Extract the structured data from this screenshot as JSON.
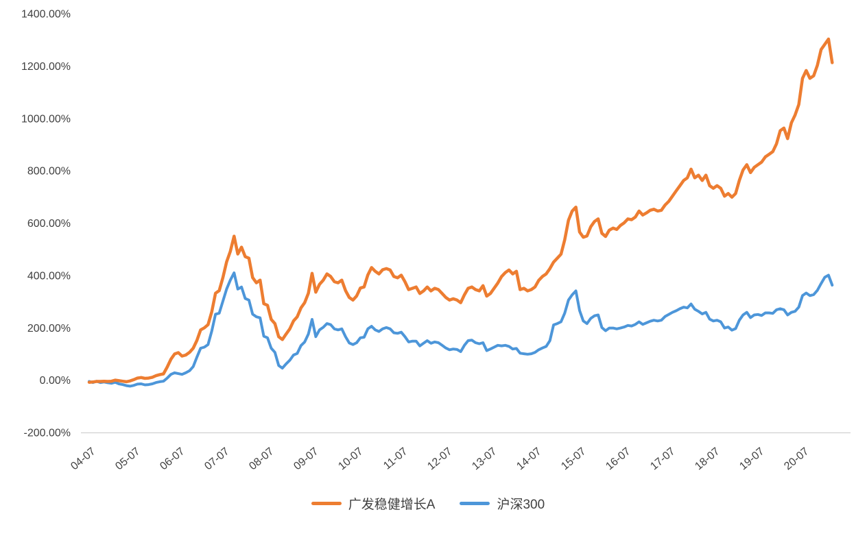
{
  "colors": {
    "background": "#FFFFFF",
    "axis_text": "#404040",
    "axis_line": "#C9C9C9",
    "fund_line": "#ED7D31",
    "index_line": "#4D96D9"
  },
  "chart_data": {
    "type": "line",
    "title": "",
    "xlabel": "",
    "ylabel": "",
    "grid": false,
    "legend_position": "bottom",
    "y_axis": {
      "min": -200,
      "max": 1400,
      "tick_step": 200,
      "tick_values": [
        1400,
        1200,
        1000,
        800,
        600,
        400,
        200,
        0,
        -200
      ],
      "tick_labels": [
        "1400.00%",
        "1200.00%",
        "1000.00%",
        "800.00%",
        "600.00%",
        "400.00%",
        "200.00%",
        "0.00%",
        "-200.00%"
      ]
    },
    "x_axis": {
      "tick_labels": [
        "04-07",
        "05-07",
        "06-07",
        "07-07",
        "08-07",
        "09-07",
        "10-07",
        "11-07",
        "12-07",
        "13-07",
        "14-07",
        "15-07",
        "16-07",
        "17-07",
        "18-07",
        "19-07",
        "20-07"
      ],
      "tick_months": [
        "2004-07",
        "2005-07",
        "2006-07",
        "2007-07",
        "2008-07",
        "2009-07",
        "2010-07",
        "2011-07",
        "2012-07",
        "2013-07",
        "2014-07",
        "2015-07",
        "2016-07",
        "2017-07",
        "2018-07",
        "2019-07",
        "2020-07"
      ]
    },
    "series": [
      {
        "name": "广发稳健增长A",
        "color": "#ED7D31",
        "stroke_width": 4.5
      },
      {
        "name": "沪深300",
        "color": "#4D96D9",
        "stroke_width": 4
      }
    ],
    "points_format": [
      "month",
      "广发稳健增长A cumulative return %",
      "沪深300 cumulative return %"
    ],
    "points": [
      [
        "2004-07",
        -8,
        -5
      ],
      [
        "2004-08",
        -7,
        -9
      ],
      [
        "2004-09",
        -5,
        -4
      ],
      [
        "2004-10",
        -5,
        -9
      ],
      [
        "2004-11",
        -4,
        -7
      ],
      [
        "2004-12",
        -5,
        -10
      ],
      [
        "2005-01",
        -4,
        -12
      ],
      [
        "2005-02",
        0,
        -8
      ],
      [
        "2005-03",
        -2,
        -14
      ],
      [
        "2005-04",
        -4,
        -17
      ],
      [
        "2005-05",
        -6,
        -21
      ],
      [
        "2005-06",
        -3,
        -23
      ],
      [
        "2005-07",
        2,
        -20
      ],
      [
        "2005-08",
        8,
        -15
      ],
      [
        "2005-09",
        10,
        -14
      ],
      [
        "2005-10",
        7,
        -18
      ],
      [
        "2005-11",
        8,
        -17
      ],
      [
        "2005-12",
        11,
        -14
      ],
      [
        "2006-01",
        17,
        -9
      ],
      [
        "2006-02",
        21,
        -6
      ],
      [
        "2006-03",
        24,
        -4
      ],
      [
        "2006-04",
        50,
        8
      ],
      [
        "2006-05",
        80,
        22
      ],
      [
        "2006-06",
        100,
        28
      ],
      [
        "2006-07",
        105,
        25
      ],
      [
        "2006-08",
        92,
        22
      ],
      [
        "2006-09",
        96,
        28
      ],
      [
        "2006-10",
        106,
        36
      ],
      [
        "2006-11",
        122,
        52
      ],
      [
        "2006-12",
        152,
        88
      ],
      [
        "2007-01",
        192,
        122
      ],
      [
        "2007-02",
        200,
        126
      ],
      [
        "2007-03",
        212,
        136
      ],
      [
        "2007-04",
        262,
        188
      ],
      [
        "2007-05",
        332,
        252
      ],
      [
        "2007-06",
        342,
        256
      ],
      [
        "2007-07",
        392,
        302
      ],
      [
        "2007-08",
        452,
        348
      ],
      [
        "2007-09",
        492,
        382
      ],
      [
        "2007-10",
        550,
        410
      ],
      [
        "2007-11",
        482,
        348
      ],
      [
        "2007-12",
        508,
        356
      ],
      [
        "2008-01",
        472,
        312
      ],
      [
        "2008-02",
        466,
        306
      ],
      [
        "2008-03",
        392,
        252
      ],
      [
        "2008-04",
        372,
        242
      ],
      [
        "2008-05",
        382,
        238
      ],
      [
        "2008-06",
        292,
        168
      ],
      [
        "2008-07",
        286,
        162
      ],
      [
        "2008-08",
        232,
        122
      ],
      [
        "2008-09",
        216,
        106
      ],
      [
        "2008-10",
        166,
        56
      ],
      [
        "2008-11",
        155,
        46
      ],
      [
        "2008-12",
        176,
        62
      ],
      [
        "2009-01",
        196,
        76
      ],
      [
        "2009-02",
        226,
        96
      ],
      [
        "2009-03",
        242,
        102
      ],
      [
        "2009-04",
        276,
        132
      ],
      [
        "2009-05",
        296,
        146
      ],
      [
        "2009-06",
        332,
        176
      ],
      [
        "2009-07",
        408,
        232
      ],
      [
        "2009-08",
        336,
        166
      ],
      [
        "2009-09",
        366,
        192
      ],
      [
        "2009-10",
        382,
        202
      ],
      [
        "2009-11",
        406,
        216
      ],
      [
        "2009-12",
        396,
        212
      ],
      [
        "2010-01",
        376,
        196
      ],
      [
        "2010-02",
        372,
        192
      ],
      [
        "2010-03",
        382,
        196
      ],
      [
        "2010-04",
        342,
        166
      ],
      [
        "2010-05",
        316,
        142
      ],
      [
        "2010-06",
        306,
        136
      ],
      [
        "2010-07",
        322,
        143
      ],
      [
        "2010-08",
        352,
        162
      ],
      [
        "2010-09",
        356,
        164
      ],
      [
        "2010-10",
        402,
        196
      ],
      [
        "2010-11",
        430,
        206
      ],
      [
        "2010-12",
        416,
        192
      ],
      [
        "2011-01",
        406,
        186
      ],
      [
        "2011-02",
        422,
        196
      ],
      [
        "2011-03",
        426,
        201
      ],
      [
        "2011-04",
        421,
        196
      ],
      [
        "2011-05",
        396,
        181
      ],
      [
        "2011-06",
        391,
        179
      ],
      [
        "2011-07",
        401,
        183
      ],
      [
        "2011-08",
        376,
        166
      ],
      [
        "2011-09",
        346,
        146
      ],
      [
        "2011-10",
        351,
        149
      ],
      [
        "2011-11",
        356,
        149
      ],
      [
        "2011-12",
        331,
        131
      ],
      [
        "2012-01",
        341,
        141
      ],
      [
        "2012-02",
        356,
        151
      ],
      [
        "2012-03",
        341,
        141
      ],
      [
        "2012-04",
        351,
        146
      ],
      [
        "2012-05",
        346,
        143
      ],
      [
        "2012-06",
        331,
        133
      ],
      [
        "2012-07",
        316,
        123
      ],
      [
        "2012-08",
        306,
        116
      ],
      [
        "2012-09",
        311,
        119
      ],
      [
        "2012-10",
        306,
        117
      ],
      [
        "2012-11",
        296,
        109
      ],
      [
        "2012-12",
        326,
        133
      ],
      [
        "2013-01",
        351,
        151
      ],
      [
        "2013-02",
        356,
        153
      ],
      [
        "2013-03",
        346,
        143
      ],
      [
        "2013-04",
        341,
        139
      ],
      [
        "2013-05",
        361,
        143
      ],
      [
        "2013-06",
        321,
        113
      ],
      [
        "2013-07",
        331,
        119
      ],
      [
        "2013-08",
        351,
        126
      ],
      [
        "2013-09",
        371,
        133
      ],
      [
        "2013-10",
        396,
        131
      ],
      [
        "2013-11",
        411,
        133
      ],
      [
        "2013-12",
        421,
        129
      ],
      [
        "2014-01",
        406,
        119
      ],
      [
        "2014-02",
        416,
        121
      ],
      [
        "2014-03",
        346,
        103
      ],
      [
        "2014-04",
        351,
        101
      ],
      [
        "2014-05",
        341,
        99
      ],
      [
        "2014-06",
        346,
        101
      ],
      [
        "2014-07",
        356,
        106
      ],
      [
        "2014-08",
        381,
        116
      ],
      [
        "2014-09",
        396,
        123
      ],
      [
        "2014-10",
        406,
        129
      ],
      [
        "2014-11",
        426,
        151
      ],
      [
        "2014-12",
        451,
        211
      ],
      [
        "2015-01",
        466,
        216
      ],
      [
        "2015-02",
        481,
        223
      ],
      [
        "2015-03",
        536,
        256
      ],
      [
        "2015-04",
        611,
        306
      ],
      [
        "2015-05",
        646,
        326
      ],
      [
        "2015-06",
        661,
        341
      ],
      [
        "2015-07",
        566,
        266
      ],
      [
        "2015-08",
        546,
        226
      ],
      [
        "2015-09",
        551,
        216
      ],
      [
        "2015-10",
        586,
        236
      ],
      [
        "2015-11",
        606,
        246
      ],
      [
        "2015-12",
        616,
        249
      ],
      [
        "2016-01",
        561,
        201
      ],
      [
        "2016-02",
        549,
        189
      ],
      [
        "2016-03",
        573,
        199
      ],
      [
        "2016-04",
        581,
        199
      ],
      [
        "2016-05",
        576,
        196
      ],
      [
        "2016-06",
        591,
        199
      ],
      [
        "2016-07",
        601,
        203
      ],
      [
        "2016-08",
        616,
        209
      ],
      [
        "2016-09",
        613,
        207
      ],
      [
        "2016-10",
        623,
        213
      ],
      [
        "2016-11",
        646,
        223
      ],
      [
        "2016-12",
        631,
        213
      ],
      [
        "2017-01",
        639,
        219
      ],
      [
        "2017-02",
        649,
        225
      ],
      [
        "2017-03",
        653,
        229
      ],
      [
        "2017-04",
        646,
        226
      ],
      [
        "2017-05",
        649,
        229
      ],
      [
        "2017-06",
        669,
        243
      ],
      [
        "2017-07",
        683,
        251
      ],
      [
        "2017-08",
        703,
        259
      ],
      [
        "2017-09",
        723,
        265
      ],
      [
        "2017-10",
        743,
        273
      ],
      [
        "2017-11",
        763,
        279
      ],
      [
        "2017-12",
        773,
        276
      ],
      [
        "2018-01",
        806,
        291
      ],
      [
        "2018-02",
        773,
        271
      ],
      [
        "2018-03",
        783,
        263
      ],
      [
        "2018-04",
        763,
        253
      ],
      [
        "2018-05",
        783,
        259
      ],
      [
        "2018-06",
        743,
        233
      ],
      [
        "2018-07",
        733,
        226
      ],
      [
        "2018-08",
        743,
        229
      ],
      [
        "2018-09",
        733,
        223
      ],
      [
        "2018-10",
        703,
        199
      ],
      [
        "2018-11",
        713,
        203
      ],
      [
        "2018-12",
        699,
        191
      ],
      [
        "2019-01",
        713,
        197
      ],
      [
        "2019-02",
        763,
        229
      ],
      [
        "2019-03",
        803,
        249
      ],
      [
        "2019-04",
        823,
        259
      ],
      [
        "2019-05",
        793,
        239
      ],
      [
        "2019-06",
        813,
        249
      ],
      [
        "2019-07",
        823,
        251
      ],
      [
        "2019-08",
        833,
        247
      ],
      [
        "2019-09",
        853,
        257
      ],
      [
        "2019-10",
        863,
        257
      ],
      [
        "2019-11",
        873,
        255
      ],
      [
        "2019-12",
        903,
        269
      ],
      [
        "2020-01",
        953,
        273
      ],
      [
        "2020-02",
        963,
        269
      ],
      [
        "2020-03",
        923,
        249
      ],
      [
        "2020-04",
        983,
        259
      ],
      [
        "2020-05",
        1013,
        263
      ],
      [
        "2020-06",
        1053,
        279
      ],
      [
        "2020-07",
        1153,
        323
      ],
      [
        "2020-08",
        1183,
        333
      ],
      [
        "2020-09",
        1153,
        323
      ],
      [
        "2020-10",
        1163,
        327
      ],
      [
        "2020-11",
        1203,
        343
      ],
      [
        "2020-12",
        1263,
        369
      ],
      [
        "2021-01",
        1283,
        393
      ],
      [
        "2021-02",
        1303,
        401
      ],
      [
        "2021-03",
        1213,
        363
      ]
    ]
  }
}
